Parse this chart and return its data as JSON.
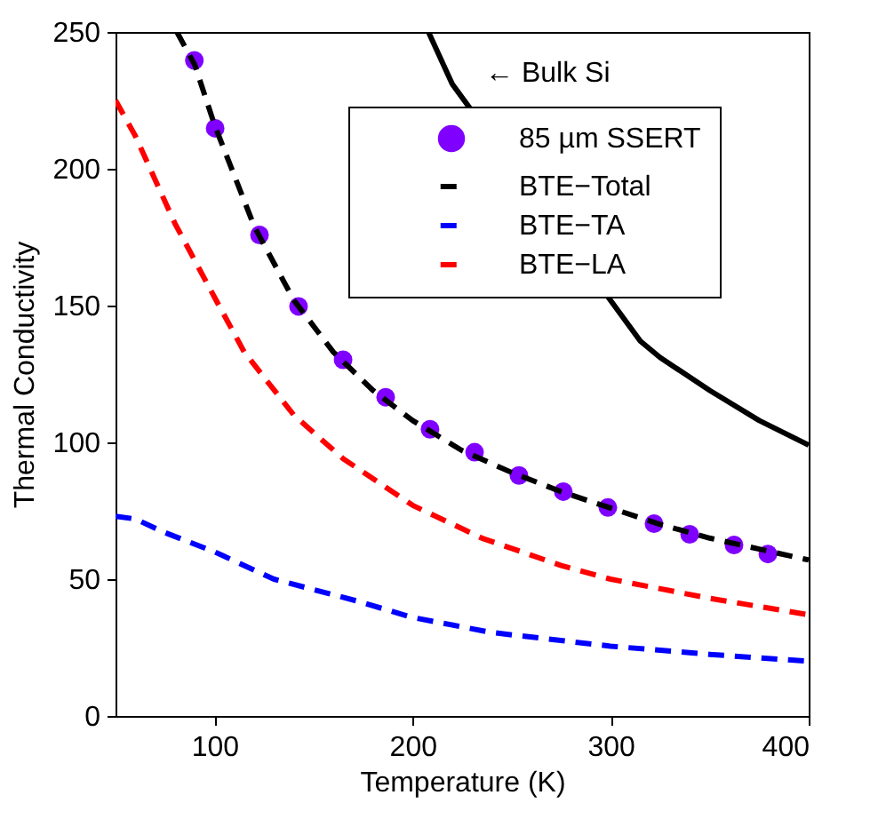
{
  "chart_data": {
    "type": "line",
    "xlabel": "Temperature (K)",
    "ylabel": "Thermal Conductivity",
    "xlim": [
      50,
      400
    ],
    "ylim": [
      0,
      250
    ],
    "xticks": [
      100,
      200,
      300,
      400
    ],
    "yticks": [
      0,
      50,
      100,
      150,
      200,
      250
    ],
    "grid": false,
    "legend": "top right",
    "annotations": [
      "← Bulk Si"
    ],
    "series": [
      {
        "name": "85 µm SSERT",
        "type": "scatter",
        "marker": "circle",
        "color": "#7f00ff",
        "x": [
          89.8,
          100.3,
          122.7,
          142.4,
          164.9,
          186.4,
          208.8,
          231.3,
          253.7,
          276.1,
          298.6,
          321.9,
          339.9,
          362.3,
          379.4
        ],
        "values": [
          239.6,
          214.8,
          175.8,
          149.7,
          130.2,
          116.5,
          104.8,
          96.4,
          87.9,
          82.0,
          76.2,
          70.3,
          66.4,
          62.5,
          59.2
        ]
      },
      {
        "name": "BTE−Total",
        "line_style": "dashed",
        "color": "#000000",
        "x": [
          81,
          90,
          100,
          120,
          140,
          160,
          180,
          200,
          225,
          250,
          275,
          300,
          325,
          350,
          375,
          400
        ],
        "values": [
          250,
          238,
          216,
          179,
          152,
          133,
          119,
          108,
          97,
          89,
          82,
          76,
          70,
          65,
          61,
          57
        ]
      },
      {
        "name": "BTE−TA",
        "line_style": "dashed",
        "color": "#0000ff",
        "x": [
          50,
          60,
          75,
          100,
          130,
          172,
          200,
          240,
          300,
          350,
          400
        ],
        "values": [
          73,
          72,
          67,
          60,
          50,
          42,
          36,
          30.5,
          25.5,
          22.5,
          20
        ]
      },
      {
        "name": "BTE−LA",
        "line_style": "dashed",
        "color": "#ff0000",
        "x": [
          50,
          60,
          80,
          100,
          115,
          140,
          165,
          200,
          235,
          275,
          300,
          350,
          400
        ],
        "values": [
          225,
          212,
          180,
          153,
          133,
          110,
          94,
          77,
          65,
          55,
          50,
          43,
          37
        ]
      },
      {
        "line_style": "solid",
        "color": "#000000",
        "x": [
          208,
          220,
          315,
          325,
          350,
          375,
          400
        ],
        "values": [
          250,
          231,
          137,
          131,
          119,
          108,
          99
        ]
      }
    ]
  }
}
